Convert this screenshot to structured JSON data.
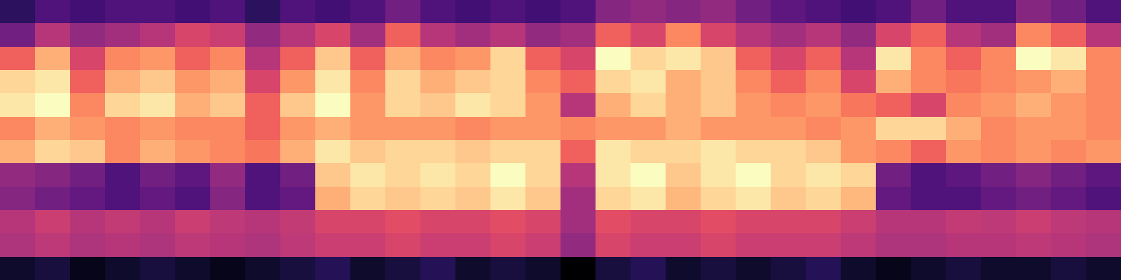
{
  "chart_data": {
    "type": "heatmap",
    "color": "magma",
    "tick_labels": false,
    "cells": [
      [
        0.25,
        0.3,
        0.28,
        0.3,
        0.3,
        0.28,
        0.3,
        0.25,
        0.3,
        0.28,
        0.3,
        0.35,
        0.3,
        0.28,
        0.3,
        0.28,
        0.3,
        0.38,
        0.4,
        0.38,
        0.4,
        0.35,
        0.32,
        0.3,
        0.28,
        0.3,
        0.35,
        0.3,
        0.3,
        0.38,
        0.35,
        0.3
      ],
      [
        0.35,
        0.45,
        0.4,
        0.42,
        0.45,
        0.5,
        0.48,
        0.4,
        0.45,
        0.5,
        0.42,
        0.55,
        0.45,
        0.42,
        0.45,
        0.4,
        0.42,
        0.55,
        0.5,
        0.6,
        0.5,
        0.45,
        0.42,
        0.45,
        0.4,
        0.5,
        0.55,
        0.45,
        0.42,
        0.6,
        0.55,
        0.45
      ],
      [
        0.55,
        0.65,
        0.5,
        0.6,
        0.62,
        0.55,
        0.6,
        0.45,
        0.55,
        0.68,
        0.55,
        0.65,
        0.6,
        0.62,
        0.7,
        0.55,
        0.5,
        0.75,
        0.7,
        0.72,
        0.68,
        0.55,
        0.5,
        0.55,
        0.45,
        0.72,
        0.6,
        0.55,
        0.6,
        0.75,
        0.72,
        0.6
      ],
      [
        0.7,
        0.72,
        0.55,
        0.65,
        0.68,
        0.62,
        0.65,
        0.5,
        0.62,
        0.72,
        0.6,
        0.7,
        0.65,
        0.68,
        0.7,
        0.6,
        0.55,
        0.7,
        0.72,
        0.65,
        0.68,
        0.6,
        0.55,
        0.6,
        0.5,
        0.65,
        0.6,
        0.58,
        0.6,
        0.62,
        0.65,
        0.6
      ],
      [
        0.72,
        0.75,
        0.6,
        0.7,
        0.72,
        0.65,
        0.68,
        0.55,
        0.68,
        0.75,
        0.62,
        0.7,
        0.68,
        0.72,
        0.7,
        0.62,
        0.45,
        0.65,
        0.7,
        0.65,
        0.68,
        0.62,
        0.6,
        0.62,
        0.58,
        0.55,
        0.5,
        0.6,
        0.62,
        0.65,
        0.62,
        0.6
      ],
      [
        0.6,
        0.65,
        0.62,
        0.6,
        0.62,
        0.6,
        0.6,
        0.55,
        0.62,
        0.65,
        0.62,
        0.62,
        0.62,
        0.6,
        0.62,
        0.62,
        0.6,
        0.62,
        0.62,
        0.65,
        0.62,
        0.62,
        0.62,
        0.6,
        0.62,
        0.7,
        0.7,
        0.65,
        0.6,
        0.62,
        0.62,
        0.6
      ],
      [
        0.65,
        0.7,
        0.68,
        0.6,
        0.65,
        0.62,
        0.6,
        0.58,
        0.65,
        0.72,
        0.68,
        0.7,
        0.7,
        0.68,
        0.7,
        0.7,
        0.55,
        0.72,
        0.7,
        0.7,
        0.72,
        0.7,
        0.7,
        0.68,
        0.62,
        0.6,
        0.55,
        0.62,
        0.6,
        0.62,
        0.6,
        0.62
      ],
      [
        0.4,
        0.38,
        0.35,
        0.3,
        0.35,
        0.32,
        0.4,
        0.3,
        0.35,
        0.68,
        0.72,
        0.7,
        0.72,
        0.7,
        0.75,
        0.7,
        0.45,
        0.72,
        0.75,
        0.68,
        0.72,
        0.75,
        0.7,
        0.72,
        0.7,
        0.35,
        0.3,
        0.32,
        0.35,
        0.38,
        0.35,
        0.32
      ],
      [
        0.38,
        0.35,
        0.33,
        0.3,
        0.33,
        0.3,
        0.38,
        0.3,
        0.33,
        0.65,
        0.7,
        0.68,
        0.7,
        0.68,
        0.72,
        0.68,
        0.42,
        0.7,
        0.72,
        0.66,
        0.7,
        0.72,
        0.68,
        0.7,
        0.66,
        0.33,
        0.3,
        0.3,
        0.33,
        0.35,
        0.33,
        0.3
      ],
      [
        0.45,
        0.48,
        0.45,
        0.47,
        0.45,
        0.48,
        0.46,
        0.45,
        0.47,
        0.5,
        0.5,
        0.52,
        0.5,
        0.5,
        0.52,
        0.5,
        0.42,
        0.52,
        0.5,
        0.5,
        0.52,
        0.5,
        0.5,
        0.5,
        0.48,
        0.45,
        0.45,
        0.47,
        0.46,
        0.48,
        0.46,
        0.45
      ],
      [
        0.44,
        0.46,
        0.44,
        0.45,
        0.44,
        0.46,
        0.45,
        0.44,
        0.46,
        0.48,
        0.48,
        0.5,
        0.48,
        0.48,
        0.5,
        0.48,
        0.4,
        0.5,
        0.48,
        0.48,
        0.5,
        0.48,
        0.48,
        0.48,
        0.46,
        0.44,
        0.44,
        0.45,
        0.45,
        0.46,
        0.45,
        0.44
      ],
      [
        0.2,
        0.22,
        0.18,
        0.2,
        0.22,
        0.2,
        0.18,
        0.2,
        0.22,
        0.24,
        0.2,
        0.22,
        0.24,
        0.2,
        0.22,
        0.2,
        0.15,
        0.22,
        0.24,
        0.2,
        0.22,
        0.2,
        0.22,
        0.24,
        0.2,
        0.18,
        0.2,
        0.22,
        0.2,
        0.2,
        0.22,
        0.2
      ]
    ]
  }
}
